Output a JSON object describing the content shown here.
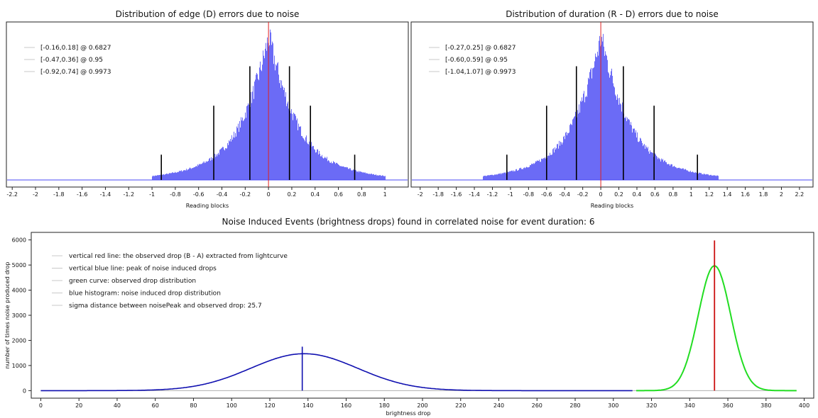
{
  "chart_data": [
    {
      "type": "bar",
      "title": "Distribution of edge (D) errors due to noise",
      "xlabel": "Reading blocks",
      "ylabel": "",
      "xlim": [
        -2.25,
        1.2
      ],
      "x_ticks": [
        "-2.2",
        "-2",
        "-1.8",
        "-1.6",
        "-1.4",
        "-1.2",
        "-1",
        "-0.8",
        "-0.6",
        "-0.4",
        "-0.2",
        "0",
        "0.2",
        "0.4",
        "0.6",
        "0.8",
        "1"
      ],
      "x_tick_values": [
        -2.2,
        -2,
        -1.8,
        -1.6,
        -1.4,
        -1.2,
        -1,
        -0.8,
        -0.6,
        -0.4,
        -0.2,
        0,
        0.2,
        0.4,
        0.6,
        0.8,
        1
      ],
      "legend": [
        "[-0.16,0.18] @ 0.6827",
        "[-0.47,0.36] @ 0.95",
        "[-0.92,0.74] @ 0.9973"
      ],
      "legend_position": "top-left",
      "histogram_color": "#4a4af4",
      "histogram_peak": 0.0,
      "histogram_support": [
        -1.0,
        1.0
      ],
      "observed_line_x": 0.0,
      "observed_line_color": "#e02020",
      "interval_lines": [
        {
          "x": -0.16,
          "level": "0.6827"
        },
        {
          "x": 0.18,
          "level": "0.6827"
        },
        {
          "x": -0.47,
          "level": "0.95"
        },
        {
          "x": 0.36,
          "level": "0.95"
        },
        {
          "x": -0.92,
          "level": "0.9973"
        },
        {
          "x": 0.74,
          "level": "0.9973"
        }
      ]
    },
    {
      "type": "bar",
      "title": "Distribution of duration (R - D) errors due to noise",
      "xlabel": "Reading blocks",
      "ylabel": "",
      "xlim": [
        -2.1,
        2.35
      ],
      "x_ticks": [
        "-2",
        "-1.8",
        "-1.6",
        "-1.4",
        "-1.2",
        "-1",
        "-0.8",
        "-0.6",
        "-0.4",
        "-0.2",
        "0",
        "0.2",
        "0.4",
        "0.6",
        "0.8",
        "1",
        "1.2",
        "1.4",
        "1.6",
        "1.8",
        "2",
        "2.2"
      ],
      "x_tick_values": [
        -2,
        -1.8,
        -1.6,
        -1.4,
        -1.2,
        -1,
        -0.8,
        -0.6,
        -0.4,
        -0.2,
        0,
        0.2,
        0.4,
        0.6,
        0.8,
        1,
        1.2,
        1.4,
        1.6,
        1.8,
        2,
        2.2
      ],
      "legend": [
        "[-0.27,0.25] @ 0.6827",
        "[-0.60,0.59] @ 0.95",
        "[-1.04,1.07] @ 0.9973"
      ],
      "legend_position": "top-left",
      "histogram_color": "#4a4af4",
      "histogram_peak": 0.0,
      "histogram_support": [
        -1.3,
        1.3
      ],
      "observed_line_x": 0.0,
      "observed_line_color": "#e02020",
      "interval_lines": [
        {
          "x": -0.27,
          "level": "0.6827"
        },
        {
          "x": 0.25,
          "level": "0.6827"
        },
        {
          "x": -0.6,
          "level": "0.95"
        },
        {
          "x": 0.59,
          "level": "0.95"
        },
        {
          "x": -1.04,
          "level": "0.9973"
        },
        {
          "x": 1.07,
          "level": "0.9973"
        }
      ]
    },
    {
      "type": "line",
      "title": "Noise Induced Events (brightness drops) found in correlated noise for event duration: 6",
      "xlabel": "brightness drop",
      "ylabel": "number of times noise produced drop",
      "xlim": [
        -5,
        405
      ],
      "ylim": [
        -300,
        6300
      ],
      "x_ticks": [
        "0",
        "20",
        "40",
        "60",
        "80",
        "100",
        "120",
        "140",
        "160",
        "180",
        "200",
        "220",
        "240",
        "260",
        "280",
        "300",
        "320",
        "340",
        "360",
        "380",
        "400"
      ],
      "y_ticks": [
        "0",
        "1000",
        "2000",
        "3000",
        "4000",
        "5000",
        "6000"
      ],
      "legend": [
        "vertical red line: the observed drop (B - A) extracted from lightcurve",
        "vertical blue line: peak of noise induced drops",
        "green curve: observed drop distribution",
        "blue histogram: noise induced drop distribution",
        "sigma distance between noisePeak and observed drop: 25.7"
      ],
      "legend_position": "top-left",
      "series": [
        {
          "color": "#1010b0",
          "kind": "gaussian",
          "center": 138,
          "sigma": 28,
          "peak": 1470,
          "range": [
            0,
            310
          ]
        },
        {
          "color": "#22dd22",
          "kind": "gaussian",
          "center": 353,
          "sigma": 8.5,
          "peak": 4970,
          "range": [
            312,
            396
          ]
        }
      ],
      "observed_drop_x": 353,
      "observed_drop_color": "#cc1111",
      "noise_peak_x": 137,
      "noise_peak_color": "#1010b0",
      "baseline_color": "#b0b0b0"
    }
  ]
}
